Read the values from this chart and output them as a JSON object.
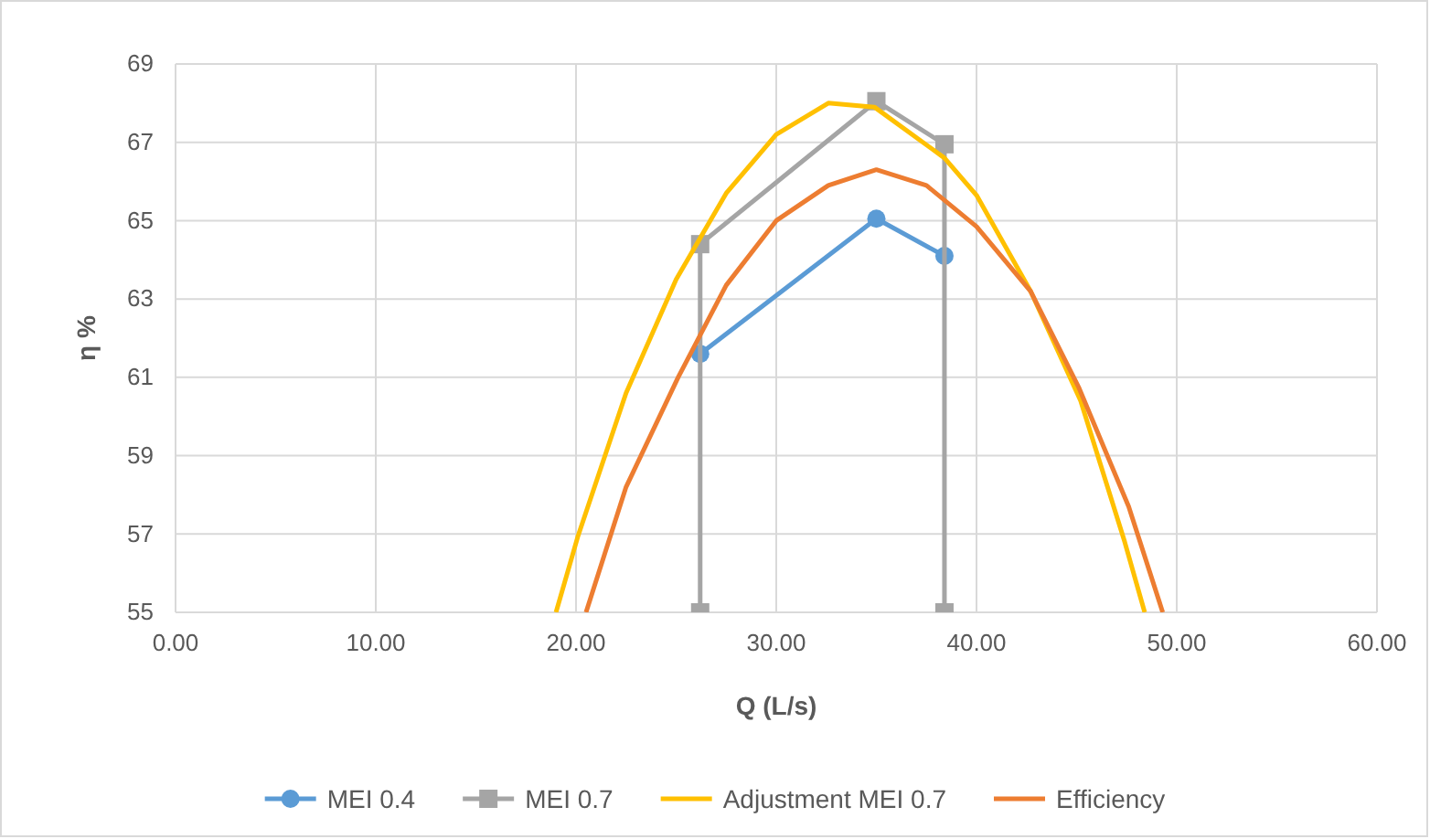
{
  "chart_data": {
    "type": "line",
    "xlabel": "Q (L/s)",
    "ylabel": "η %",
    "xlim": [
      0,
      60
    ],
    "xticks": [
      {
        "value": 0,
        "label": "0.00"
      },
      {
        "value": 10,
        "label": "10.00"
      },
      {
        "value": 20,
        "label": "20.00"
      },
      {
        "value": 30,
        "label": "30.00"
      },
      {
        "value": 40,
        "label": "40.00"
      },
      {
        "value": 50,
        "label": "50.00"
      },
      {
        "value": 60,
        "label": "60.00"
      }
    ],
    "ylim": [
      55,
      69
    ],
    "yticks": [
      55,
      57,
      59,
      61,
      63,
      65,
      67,
      69
    ],
    "grid": true,
    "legend": "bottom",
    "line_style": "solid",
    "series": [
      {
        "name": "MEI 0.4",
        "color": "#5b9bd5",
        "marker": "circle",
        "x": [
          26.2,
          35.0,
          38.4
        ],
        "values": [
          61.6,
          65.05,
          64.1
        ]
      },
      {
        "name": "MEI 0.7",
        "color": "#a5a5a5",
        "marker": "square",
        "x": [
          26.2,
          26.2,
          35.0,
          38.4,
          38.4
        ],
        "values": [
          55,
          64.4,
          68.05,
          66.95,
          55
        ]
      },
      {
        "name": "Adjustment MEI 0.7",
        "color": "#ffc000",
        "marker": "none",
        "x": [
          19.0,
          20.1,
          22.5,
          25.0,
          27.5,
          30.0,
          32.6,
          34.9,
          38.4,
          40.0,
          42.7,
          45.2,
          47.4,
          48.4
        ],
        "values": [
          55,
          56.95,
          60.6,
          63.5,
          65.7,
          67.2,
          68.0,
          67.9,
          66.6,
          65.65,
          63.2,
          60.4,
          56.8,
          55
        ]
      },
      {
        "name": "Efficiency",
        "color": "#ed7d31",
        "marker": "none",
        "x": [
          20.5,
          22.5,
          25.1,
          27.5,
          30.0,
          32.6,
          35.0,
          37.5,
          40.0,
          42.7,
          45.1,
          47.6,
          49.3
        ],
        "values": [
          55,
          58.2,
          61.0,
          63.35,
          65.0,
          65.9,
          66.3,
          65.9,
          64.85,
          63.2,
          60.75,
          57.7,
          55
        ]
      }
    ]
  }
}
